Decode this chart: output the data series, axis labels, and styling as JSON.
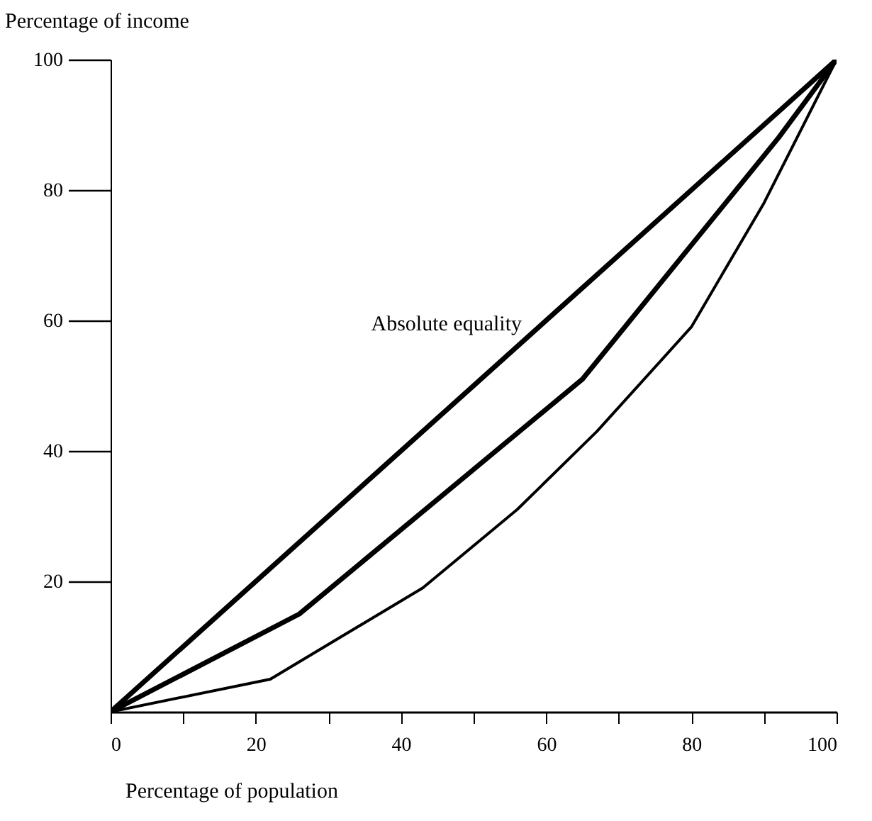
{
  "chart_data": {
    "type": "line",
    "xlabel": "Percentage of population",
    "ylabel": "Percentage of income",
    "xlim": [
      0,
      100
    ],
    "ylim": [
      0,
      100
    ],
    "xticks": [
      0,
      {
        "value": 10,
        "label": null
      },
      20,
      {
        "value": 30,
        "label": null
      },
      40,
      {
        "value": 50,
        "label": null
      },
      60,
      {
        "value": 70,
        "label": null
      },
      80,
      {
        "value": 90,
        "label": null
      },
      100
    ],
    "yticks": [
      20,
      40,
      60,
      80,
      100
    ],
    "series": [
      {
        "color": "#000000",
        "x": [
          0,
          100
        ],
        "values": [
          0,
          100
        ]
      },
      {
        "color": "#000000",
        "x": [
          0,
          26,
          65,
          92,
          100
        ],
        "values": [
          0,
          15,
          51,
          88,
          100
        ]
      },
      {
        "color": "#000000",
        "x": [
          0,
          22,
          31,
          43,
          56,
          67,
          80,
          90,
          100
        ],
        "values": [
          0,
          5,
          11,
          19,
          31,
          43,
          59,
          78,
          100
        ]
      }
    ],
    "annotations": [
      "Absolute equality"
    ],
    "grid": false,
    "marker": "none",
    "line_style": "solid"
  }
}
